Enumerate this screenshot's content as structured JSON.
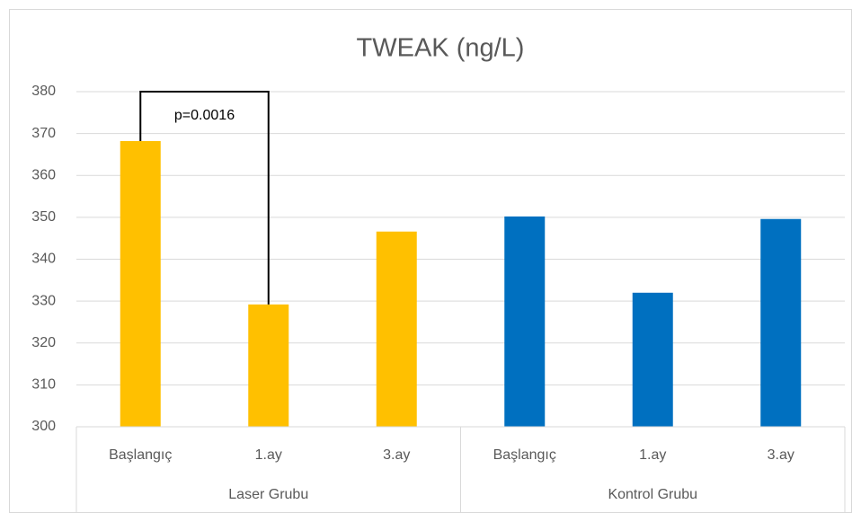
{
  "chart_data": {
    "type": "bar",
    "title": "TWEAK (ng/L)",
    "groups": [
      {
        "name": "Laser Grubu",
        "color": "#ffc000",
        "categories": [
          "Başlangıç",
          "1.ay",
          "3.ay"
        ],
        "values": [
          368.2,
          329.2,
          346.6
        ]
      },
      {
        "name": "Kontrol Grubu",
        "color": "#0070c0",
        "categories": [
          "Başlangıç",
          "1.ay",
          "3.ay"
        ],
        "values": [
          350.2,
          332.0,
          349.6
        ]
      }
    ],
    "annotations": [
      {
        "text": "p=0.0016"
      }
    ],
    "ylim": [
      300,
      380
    ],
    "yticks": [
      300,
      310,
      320,
      330,
      340,
      350,
      360,
      370,
      380
    ],
    "grid": true
  }
}
